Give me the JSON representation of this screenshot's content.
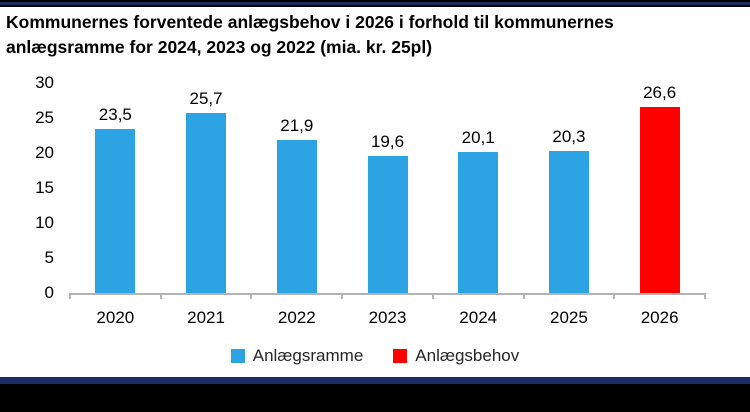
{
  "header": {
    "title_lines": [
      "Kommunernes forventede anlægsbehov i 2026 i forhold til kommunernes",
      "anlægsramme for 2024, 2023 og 2022 (mia. kr. 25pl)"
    ]
  },
  "colors": {
    "bar_blue": "#2ca3e2",
    "bar_red": "#ff0000",
    "accent_navy": "#1f2c64",
    "axis_gray": "#b3b3b3",
    "footer_black": "#000000"
  },
  "chart_data": {
    "type": "bar",
    "title": "Kommunernes forventede anlægsbehov i 2026 i forhold til kommunernes anlægsramme for 2024, 2023 og 2022 (mia. kr. 25pl)",
    "categories": [
      "2020",
      "2021",
      "2022",
      "2023",
      "2024",
      "2025",
      "2026"
    ],
    "series": [
      {
        "name": "Anlægsramme",
        "color": "#2ca3e2",
        "values": [
          23.5,
          25.7,
          21.9,
          19.6,
          20.1,
          20.3,
          null
        ]
      },
      {
        "name": "Anlægsbehov",
        "color": "#ff0000",
        "values": [
          null,
          null,
          null,
          null,
          null,
          null,
          26.6
        ]
      }
    ],
    "data_labels": [
      "23,5",
      "25,7",
      "21,9",
      "19,6",
      "20,1",
      "20,3",
      "26,6"
    ],
    "decimal_separator": ",",
    "xlabel": "",
    "ylabel": "",
    "ylim": [
      0,
      30
    ],
    "yticks": [
      0,
      5,
      10,
      15,
      20,
      25,
      30
    ],
    "grid": false,
    "legend_position": "bottom"
  }
}
